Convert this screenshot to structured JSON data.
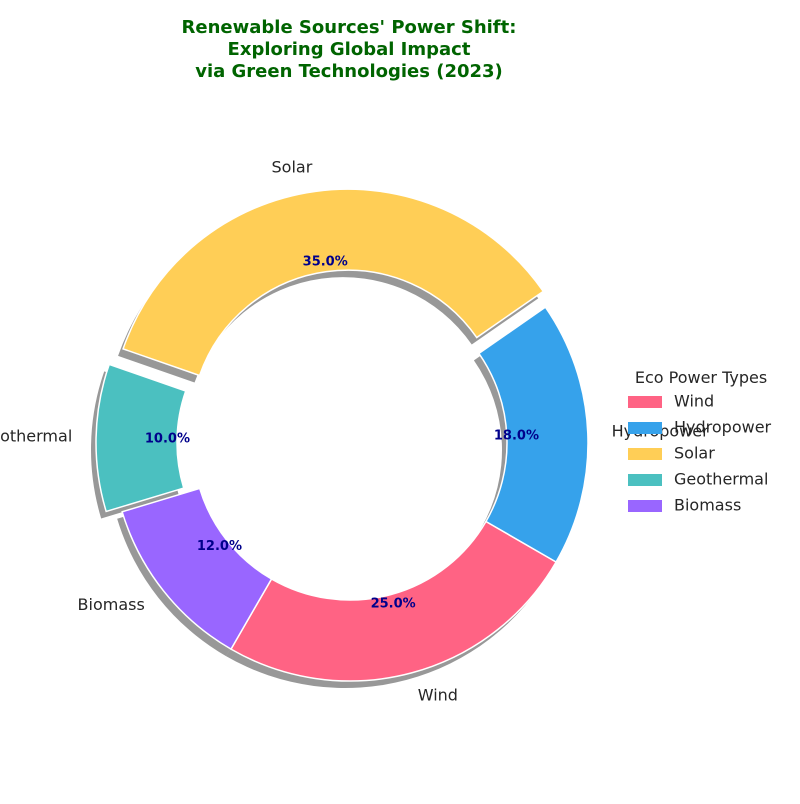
{
  "chart_data": {
    "type": "pie",
    "title_lines": [
      "Renewable Sources' Power Shift:",
      "Exploring Global Impact",
      "via Green Technologies (2023)"
    ],
    "categories": [
      "Wind",
      "Hydropower",
      "Solar",
      "Geothermal",
      "Biomass"
    ],
    "values": [
      25,
      18,
      35,
      10,
      12
    ],
    "percent_labels": [
      "25.0%",
      "18.0%",
      "35.0%",
      "10.0%",
      "12.0%"
    ],
    "exploded": [
      false,
      false,
      true,
      true,
      false
    ],
    "colors": [
      "#FF6384",
      "#36A2EB",
      "#FFCE56",
      "#4BC0C0",
      "#9966FF"
    ],
    "legend_title": "Eco Power Types",
    "legend_placement": "center-right",
    "donut": true,
    "title_color": "#006400",
    "percent_label_color": "#00008B"
  }
}
